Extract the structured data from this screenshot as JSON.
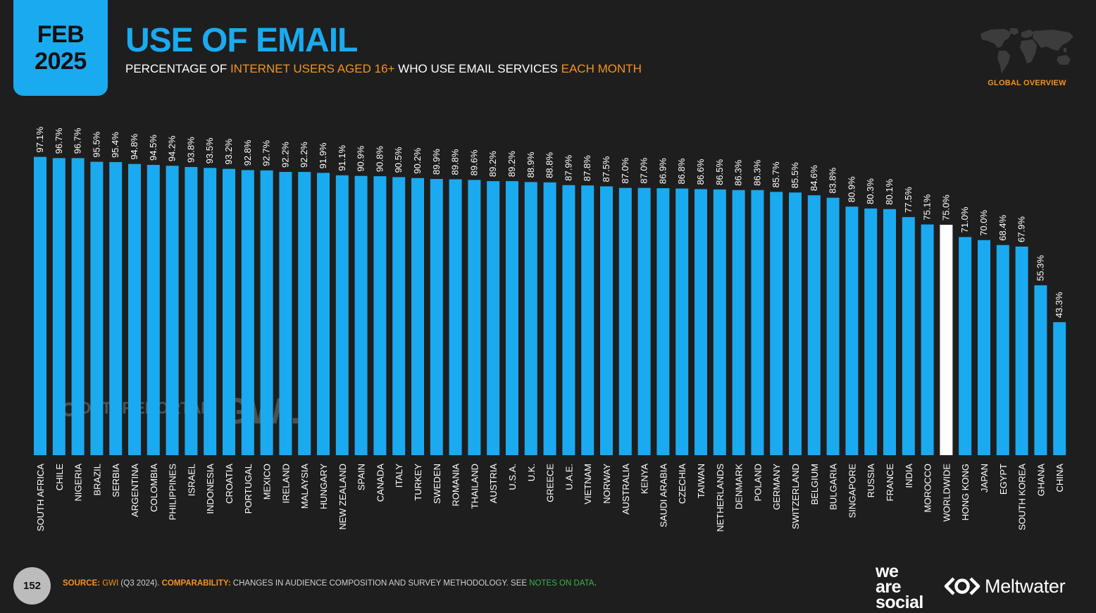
{
  "header": {
    "date_month": "FEB",
    "date_year": "2025",
    "title": "USE OF EMAIL",
    "subtitle_part1": "PERCENTAGE OF ",
    "subtitle_hl1": "INTERNET USERS AGED 16+",
    "subtitle_part2": " WHO USE EMAIL SERVICES ",
    "subtitle_hl2": "EACH MONTH",
    "overview_label": "GLOBAL OVERVIEW"
  },
  "watermarks": {
    "datareportal": "DATAREPORTAL",
    "gwi": "GWI."
  },
  "footer": {
    "page_number": "152",
    "source_label": "SOURCE:",
    "source_gwi": "GWI",
    "source_detail": " (Q3 2024). ",
    "comparability_label": "COMPARABILITY:",
    "comparability_text": " CHANGES IN AUDIENCE COMPOSITION AND SURVEY METHODOLOGY. SEE ",
    "notes_link": "NOTES ON DATA",
    "notes_end": ".",
    "brand_we": "we",
    "brand_are": "are",
    "brand_social": "social",
    "brand_meltwater": "Meltwater"
  },
  "colors": {
    "bar": "#1aaaf0",
    "highlight_bar": "#ffffff",
    "accent": "#f7931e",
    "background": "#1e1e1e"
  },
  "chart_data": {
    "type": "bar",
    "value_suffix": "%",
    "highlight_category": "WORLDWIDE",
    "ylim": [
      0,
      100
    ],
    "grid": false,
    "categories": [
      "SOUTH AFRICA",
      "CHILE",
      "NIGERIA",
      "BRAZIL",
      "SERBIA",
      "ARGENTINA",
      "COLOMBIA",
      "PHILIPPINES",
      "ISRAEL",
      "INDONESIA",
      "CROATIA",
      "PORTUGAL",
      "MEXICO",
      "IRELAND",
      "MALAYSIA",
      "HUNGARY",
      "NEW ZEALAND",
      "SPAIN",
      "CANADA",
      "ITALY",
      "TURKEY",
      "SWEDEN",
      "ROMANIA",
      "THAILAND",
      "AUSTRIA",
      "U.S.A.",
      "U.K.",
      "GREECE",
      "U.A.E.",
      "VIETNAM",
      "NORWAY",
      "AUSTRALIA",
      "KENYA",
      "SAUDI ARABIA",
      "CZECHIA",
      "TAIWAN",
      "NETHERLANDS",
      "DENMARK",
      "POLAND",
      "GERMANY",
      "SWITZERLAND",
      "BELGIUM",
      "BULGARIA",
      "SINGAPORE",
      "RUSSIA",
      "FRANCE",
      "INDIA",
      "MOROCCO",
      "WORLDWIDE",
      "HONG KONG",
      "JAPAN",
      "EGYPT",
      "SOUTH KOREA",
      "GHANA",
      "CHINA"
    ],
    "values": [
      97.1,
      96.7,
      96.7,
      95.5,
      95.4,
      94.8,
      94.5,
      94.2,
      93.8,
      93.5,
      93.2,
      92.8,
      92.7,
      92.2,
      92.2,
      91.9,
      91.1,
      90.9,
      90.8,
      90.5,
      90.2,
      89.9,
      89.8,
      89.6,
      89.2,
      89.2,
      88.9,
      88.8,
      87.9,
      87.8,
      87.5,
      87.0,
      87.0,
      86.9,
      86.8,
      86.6,
      86.5,
      86.3,
      86.3,
      85.7,
      85.5,
      84.6,
      83.8,
      80.9,
      80.3,
      80.1,
      77.5,
      75.1,
      75.0,
      71.0,
      70.0,
      68.4,
      67.9,
      55.3,
      43.3
    ]
  }
}
